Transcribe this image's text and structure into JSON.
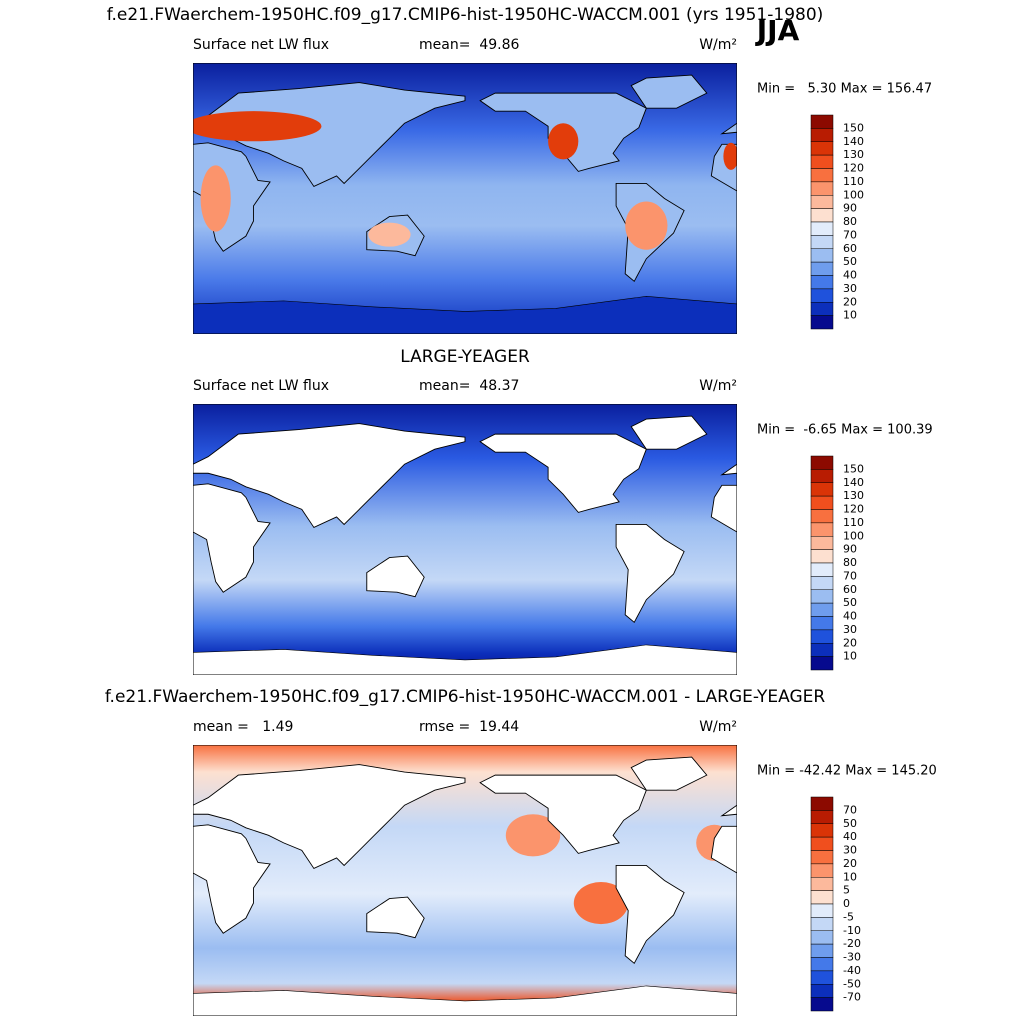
{
  "title": "f.e21.FWaerchem-1950HC.f09_g17.CMIP6-hist-1950HC-WACCM.001 (yrs 1951-1980)",
  "season": "JJA",
  "panels": [
    {
      "field": "Surface net LW flux",
      "stat": "mean=  49.86",
      "units": "W/m²",
      "range": "Min =   5.30 Max = 156.47",
      "levels": [
        150,
        140,
        130,
        120,
        110,
        100,
        90,
        80,
        70,
        60,
        50,
        40,
        30,
        20,
        10
      ],
      "colors": [
        "#8c0a00",
        "#b81c02",
        "#da3407",
        "#f04f1e",
        "#f8703f",
        "#fb946c",
        "#fcb99c",
        "#fde0d0",
        "#e2ecfb",
        "#c4d8f6",
        "#9bbdf1",
        "#6f9ded",
        "#4479e9",
        "#1f52dc",
        "#0c2fbb",
        "#060a8e"
      ]
    },
    {
      "title": "LARGE-YEAGER",
      "field": "Surface net LW flux",
      "stat": "mean=  48.37",
      "units": "W/m²",
      "range": "Min =  -6.65 Max = 100.39",
      "levels": [
        150,
        140,
        130,
        120,
        110,
        100,
        90,
        80,
        70,
        60,
        50,
        40,
        30,
        20,
        10
      ],
      "colors": [
        "#8c0a00",
        "#b81c02",
        "#da3407",
        "#f04f1e",
        "#f8703f",
        "#fb946c",
        "#fcb99c",
        "#fde0d0",
        "#e2ecfb",
        "#c4d8f6",
        "#9bbdf1",
        "#6f9ded",
        "#4479e9",
        "#1f52dc",
        "#0c2fbb",
        "#060a8e"
      ]
    },
    {
      "title": "f.e21.FWaerchem-1950HC.f09_g17.CMIP6-hist-1950HC-WACCM.001 - LARGE-YEAGER",
      "stat": "mean =   1.49",
      "stat2": "rmse =  19.44",
      "units": "W/m²",
      "range": "Min = -42.42 Max = 145.20",
      "levels": [
        70,
        50,
        40,
        30,
        20,
        10,
        5,
        0,
        -5,
        -10,
        -20,
        -30,
        -40,
        -50,
        -70
      ],
      "colors": [
        "#8c0a00",
        "#b81c02",
        "#da3407",
        "#f04f1e",
        "#f8703f",
        "#fb946c",
        "#fcb99c",
        "#fde0d0",
        "#e2ecfb",
        "#c4d8f6",
        "#9bbdf1",
        "#6f9ded",
        "#4479e9",
        "#1f52dc",
        "#0c2fbb",
        "#060a8e"
      ]
    }
  ]
}
